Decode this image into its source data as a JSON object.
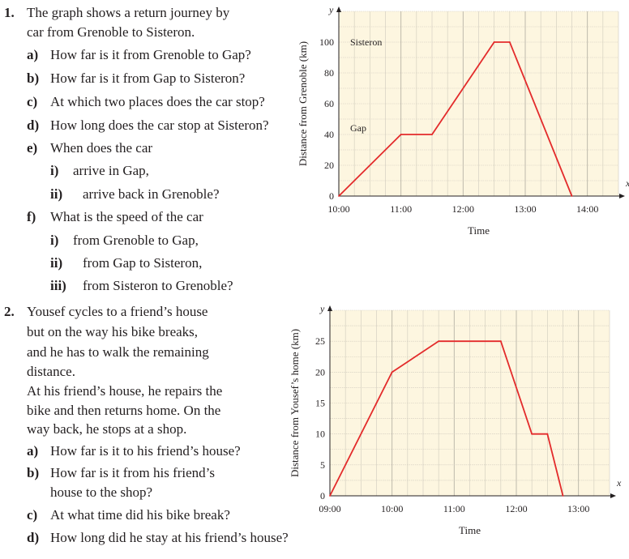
{
  "q1": {
    "num": "1.",
    "lines": [
      "The graph shows a return journey by",
      "car from Grenoble to Sisteron."
    ],
    "parts": [
      {
        "label": "a)",
        "text": "How far is it from Grenoble to Gap?"
      },
      {
        "label": "b)",
        "text": "How far is it from Gap to Sisteron?"
      },
      {
        "label": "c)",
        "text": "At which two places does the car stop?"
      },
      {
        "label": "d)",
        "text": "How long does the car stop at Sisteron?"
      },
      {
        "label": "e)",
        "text": "When does the car"
      },
      {
        "label": "i)",
        "text": "arrive in Gap,"
      },
      {
        "label": "ii)",
        "text": "arrive back in Grenoble?"
      },
      {
        "label": "f)",
        "text": "What is the speed of the car"
      },
      {
        "label": "i)",
        "text": "from Grenoble to Gap,"
      },
      {
        "label": "ii)",
        "text": "from Gap to Sisteron,"
      },
      {
        "label": "iii)",
        "text": "from Sisteron to Grenoble?"
      }
    ]
  },
  "q2": {
    "num": "2.",
    "lines": [
      "Yousef cycles to a friend’s house",
      "but on the way his bike breaks,",
      "and he has to walk the remaining",
      "distance.",
      "At his friend’s house, he repairs the",
      "bike and then returns home. On the",
      "way back, he stops at a shop."
    ],
    "parts": [
      {
        "label": "a)",
        "text": "How far is it to his friend’s house?"
      },
      {
        "label": "b)",
        "text": "How far is it from his friend’s"
      },
      {
        "label": "",
        "text": "house to the shop?"
      },
      {
        "label": "c)",
        "text": "At what time did his bike break?"
      },
      {
        "label": "d)",
        "text": "How long did he stay at his friend’s house?"
      }
    ]
  },
  "chart_data": [
    {
      "type": "line",
      "title": "",
      "xlabel": "Time",
      "ylabel": "Distance from Grenoble (km)",
      "x_axis_symbol": "x",
      "y_axis_symbol": "y",
      "xlim": [
        10,
        14.5
      ],
      "ylim": [
        0,
        120
      ],
      "x_ticks": [
        "10:00",
        "11:00",
        "12:00",
        "13:00",
        "14:00"
      ],
      "y_ticks": [
        0,
        20,
        40,
        60,
        80,
        100
      ],
      "grid": true,
      "line_color": "#e32b2b",
      "background": "#fdf6e0",
      "annotations": [
        {
          "text": "Sisteron",
          "y": 100
        },
        {
          "text": "Gap",
          "y": 40
        }
      ],
      "x": [
        10,
        11,
        11.5,
        12.5,
        12.75,
        13.75
      ],
      "y": [
        0,
        40,
        40,
        100,
        100,
        0
      ]
    },
    {
      "type": "line",
      "title": "",
      "xlabel": "Time",
      "ylabel": "Distance from Yousef’s home (km)",
      "x_axis_symbol": "x",
      "y_axis_symbol": "y",
      "xlim": [
        9,
        13.5
      ],
      "ylim": [
        0,
        30
      ],
      "x_ticks": [
        "09:00",
        "10:00",
        "11:00",
        "12:00",
        "13:00"
      ],
      "y_ticks": [
        0,
        5,
        10,
        15,
        20,
        25
      ],
      "grid": true,
      "line_color": "#e32b2b",
      "background": "#fdf6e0",
      "x": [
        9,
        10,
        10.75,
        11.75,
        12.25,
        12.5,
        12.75
      ],
      "y": [
        0,
        20,
        25,
        25,
        10,
        10,
        0
      ]
    }
  ]
}
